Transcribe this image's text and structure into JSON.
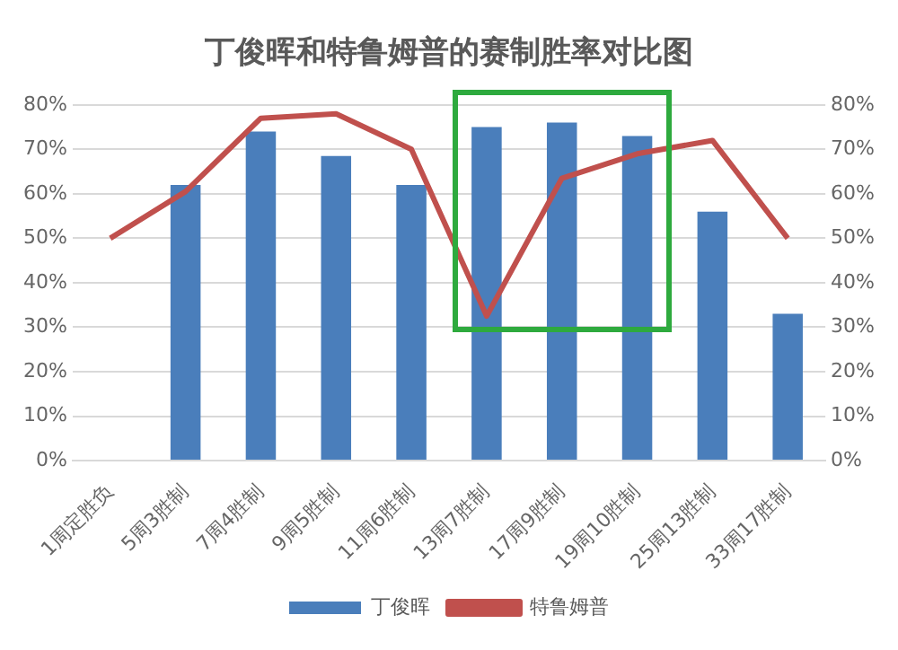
{
  "chart_data": {
    "type": "bar",
    "title": "丁俊晖和特鲁姆普的赛制胜率对比图",
    "categories": [
      "1周定胜负",
      "5周3胜制",
      "7周4胜制",
      "9周5胜制",
      "11周6胜制",
      "13周7胜制",
      "17周9胜制",
      "19周10胜制",
      "25周13胜制",
      "33周17胜制"
    ],
    "series": [
      {
        "name": "丁俊晖",
        "color": "#4a7ebb",
        "values": [
          null,
          62,
          74,
          68.5,
          62,
          75,
          76,
          73,
          56,
          33
        ]
      },
      {
        "name": "特鲁姆普",
        "type": "line",
        "axis": "y2",
        "color": "#c0504d",
        "values": [
          50,
          60.5,
          77,
          78,
          70,
          32.5,
          63.5,
          69,
          72,
          50
        ]
      }
    ],
    "ylim": [
      0,
      80
    ],
    "yticks": [
      {
        "value": 0,
        "label": "0%"
      },
      {
        "value": 10,
        "label": "10%"
      },
      {
        "value": 20,
        "label": "20%"
      },
      {
        "value": 30,
        "label": "30%"
      },
      {
        "value": 40,
        "label": "40%"
      },
      {
        "value": 50,
        "label": "50%"
      },
      {
        "value": 60,
        "label": "60%"
      },
      {
        "value": 70,
        "label": "70%"
      },
      {
        "value": 80,
        "label": "80%"
      }
    ],
    "y2lim": [
      0,
      80
    ],
    "y2ticks": [
      {
        "value": 0,
        "label": "0%"
      },
      {
        "value": 10,
        "label": "10%"
      },
      {
        "value": 20,
        "label": "20%"
      },
      {
        "value": 30,
        "label": "30%"
      },
      {
        "value": 40,
        "label": "40%"
      },
      {
        "value": 50,
        "label": "50%"
      },
      {
        "value": 60,
        "label": "60%"
      },
      {
        "value": 70,
        "label": "70%"
      },
      {
        "value": 80,
        "label": "80%"
      }
    ],
    "grid": "y",
    "legend": "bottom",
    "marker": "none",
    "line_style": "solid"
  }
}
